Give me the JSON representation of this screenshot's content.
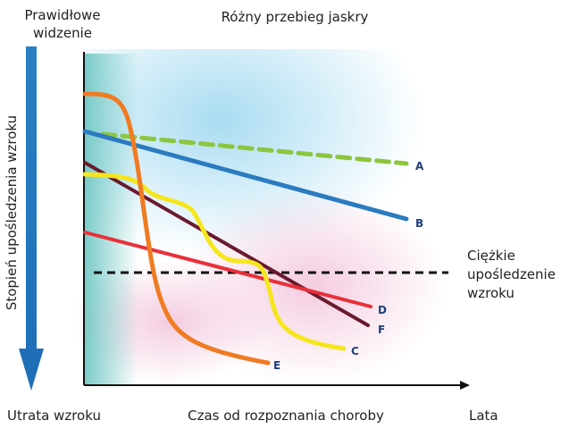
{
  "header": {
    "top_left": [
      "Prawidłowe",
      "widzenie"
    ],
    "title": "Różny przebieg jaskry"
  },
  "y_axis_label": "Stopień upośledzenia wzroku",
  "threshold_label": [
    "Ciężkie",
    "upośledzenie",
    "wzroku"
  ],
  "bottom": {
    "left": "Utrata wzroku",
    "center": "Czas od rozpoznania choroby",
    "right": "Lata"
  },
  "curves": [
    "A",
    "B",
    "C",
    "D",
    "E",
    "F"
  ]
}
